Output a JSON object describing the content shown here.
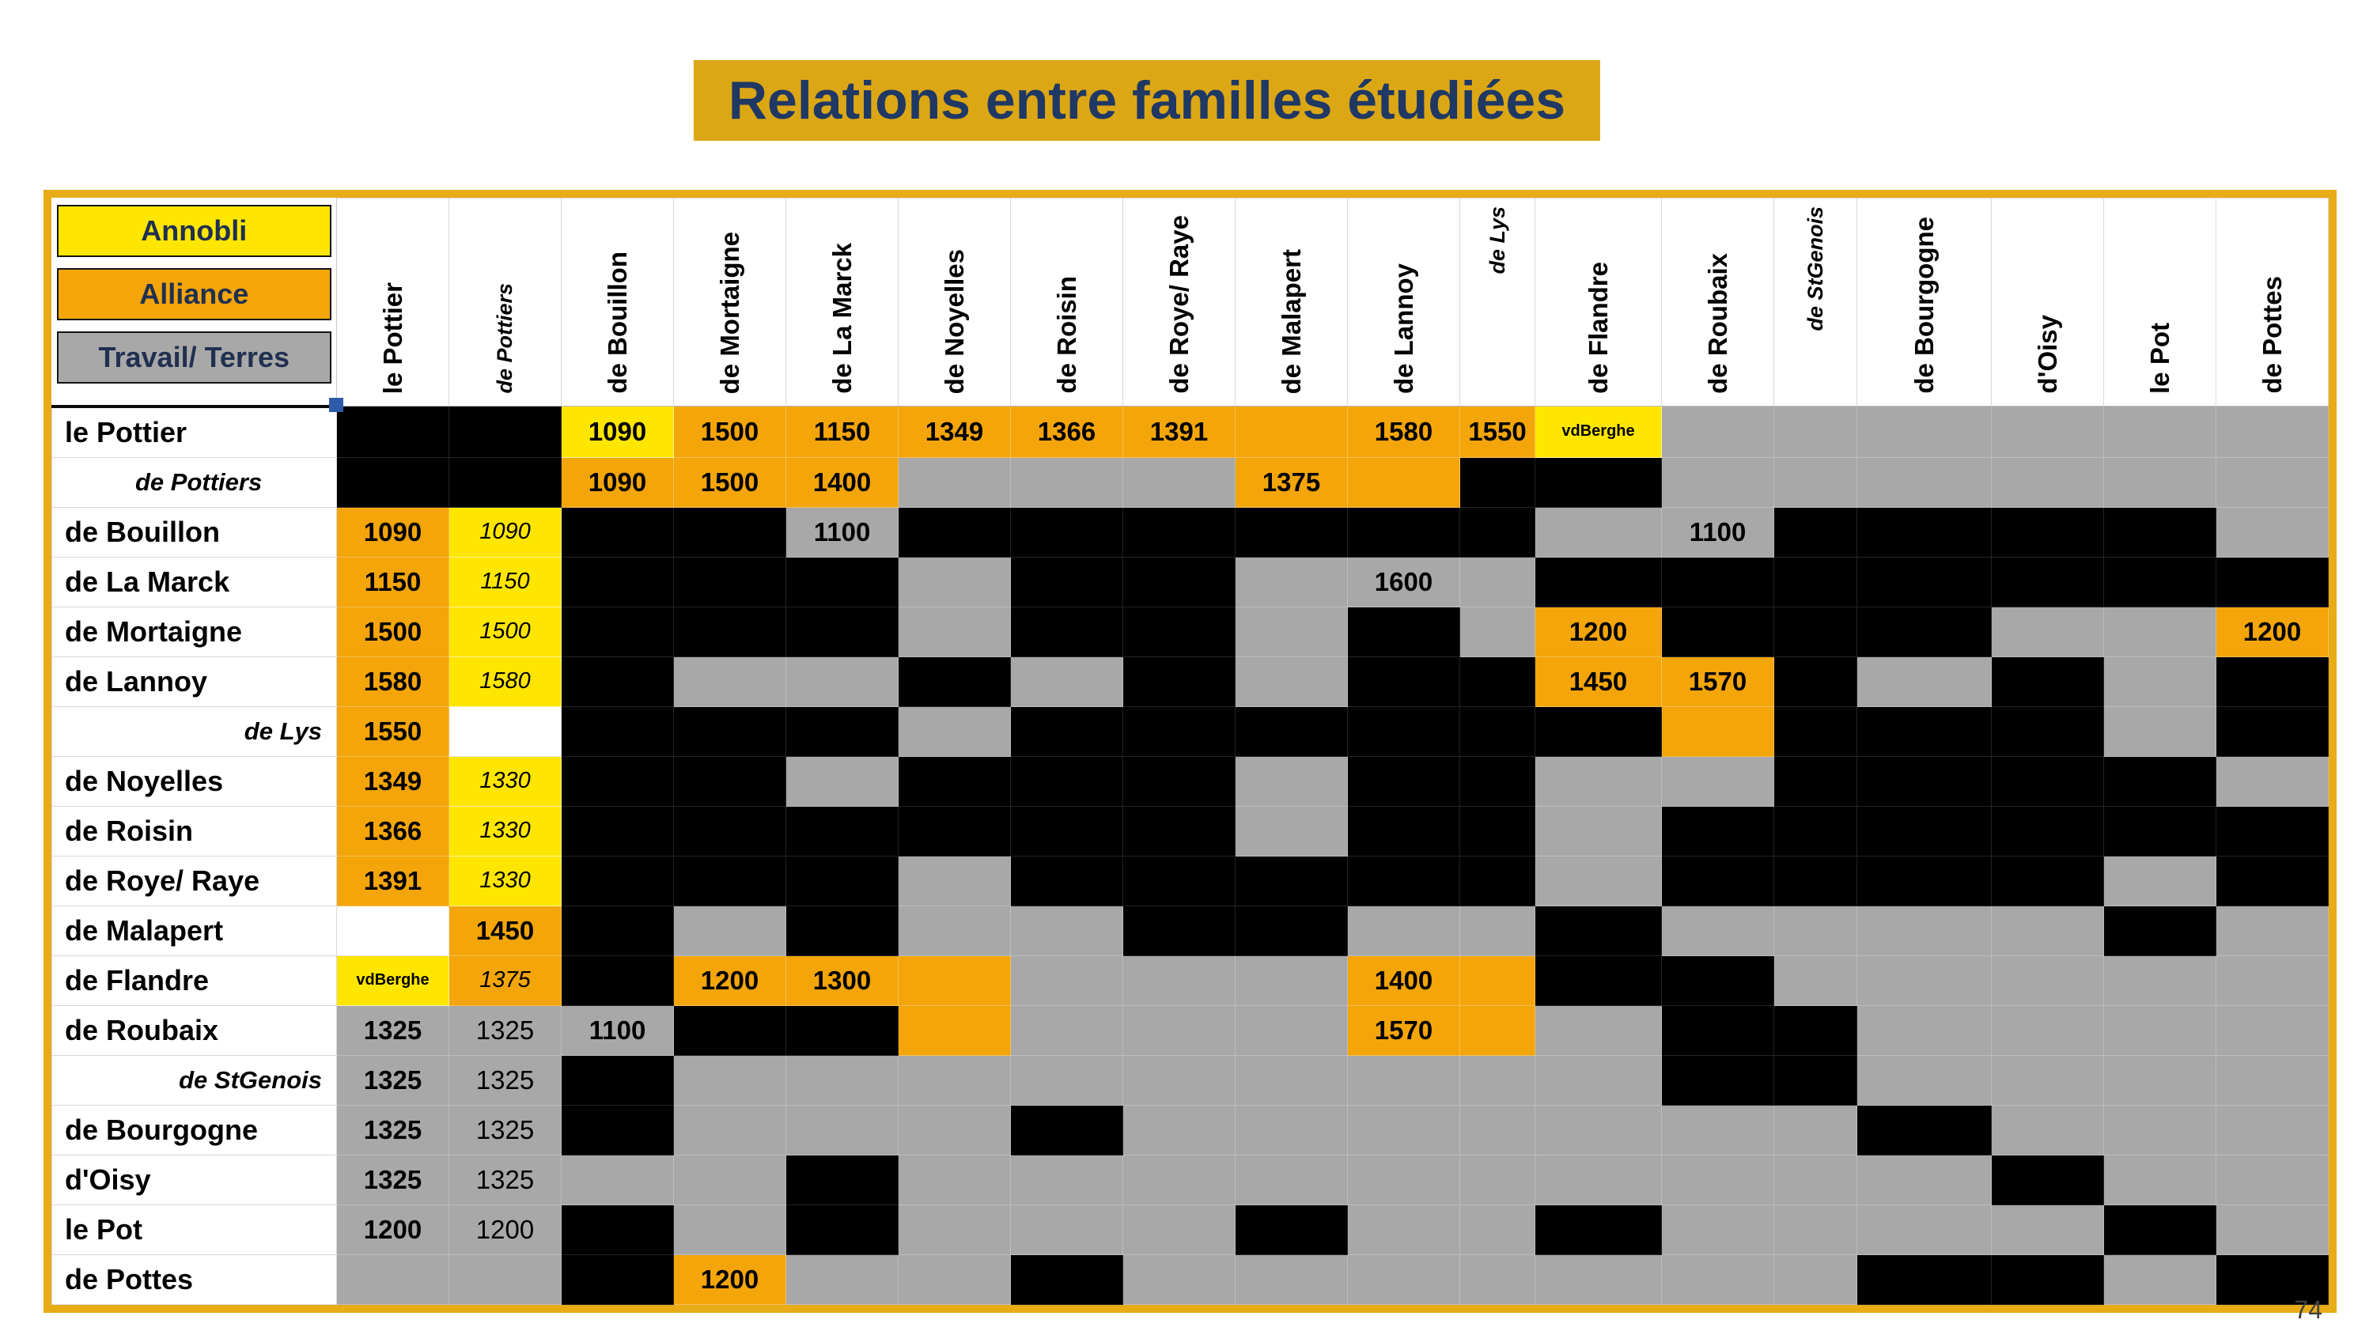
{
  "title": "Relations entre familles étudiées",
  "page_number": "74",
  "legend": [
    {
      "key": "annobli",
      "label": "Annobli",
      "color": "#FFE600"
    },
    {
      "key": "alliance",
      "label": "Alliance",
      "color": "#F3A50A"
    },
    {
      "key": "travail-terres",
      "label": "Travail/ Terres",
      "color": "#A8A8A8"
    }
  ],
  "chart_data": {
    "type": "heatmap",
    "title": "Relations entre familles étudiées",
    "legend": {
      "yellow": "Annobli",
      "orange": "Alliance",
      "gray": "Travail/ Terres"
    },
    "cell_codes": {
      "b": "black = no relation shown",
      "g": "gray = Travail/ Terres",
      "o": "orange = Alliance (year when given)",
      "y": "yellow = Annobli (year when given)",
      "w": "white = empty"
    },
    "columns": [
      {
        "label": "le Pottier"
      },
      {
        "label": "de Pottiers",
        "style": "italic"
      },
      {
        "label": "de Bouillon"
      },
      {
        "label": "de Mortaigne"
      },
      {
        "label": "de La Marck"
      },
      {
        "label": "de Noyelles"
      },
      {
        "label": "de Roisin"
      },
      {
        "label": "de Roye/ Raye"
      },
      {
        "label": "de Malapert"
      },
      {
        "label": "de Lannoy"
      },
      {
        "label": "de Lys",
        "style": "italic raised"
      },
      {
        "label": "de Flandre"
      },
      {
        "label": "de Roubaix"
      },
      {
        "label": "de StGenois",
        "style": "italic raised"
      },
      {
        "label": "de Bourgogne"
      },
      {
        "label": "d'Oisy"
      },
      {
        "label": "le Pot"
      },
      {
        "label": "de Pottes"
      }
    ],
    "rows": [
      {
        "label": "le Pottier",
        "cells": [
          "b",
          "b",
          "y:1090",
          "o:1500",
          "o:1150",
          "o:1349",
          "o:1366",
          "o:1391",
          "o",
          "o:1580",
          "o:1550",
          "y:vdBerghe:s",
          "g",
          "g",
          "g",
          "g",
          "g",
          "g"
        ]
      },
      {
        "label": "de Pottiers",
        "style": "italic indent",
        "cells": [
          "b",
          "b",
          "o:1090",
          "o:1500",
          "o:1400",
          "g",
          "g",
          "g",
          "o:1375",
          "o",
          "b",
          "b",
          "g",
          "g",
          "g",
          "g",
          "g",
          "g"
        ]
      },
      {
        "label": "de Bouillon",
        "cells": [
          "o:1090",
          "y:1090:i",
          "b",
          "b",
          "g:1100",
          "b",
          "b",
          "b",
          "b",
          "b",
          "b",
          "g",
          "g:1100",
          "b",
          "b",
          "b",
          "b",
          "g"
        ]
      },
      {
        "label": "de La Marck",
        "cells": [
          "o:1150",
          "y:1150:i",
          "b",
          "b",
          "b",
          "g",
          "b",
          "b",
          "g",
          "g:1600",
          "g",
          "b",
          "b",
          "b",
          "b",
          "b",
          "b",
          "b"
        ]
      },
      {
        "label": "de Mortaigne",
        "cells": [
          "o:1500",
          "y:1500:i",
          "b",
          "b",
          "b",
          "g",
          "b",
          "b",
          "g",
          "b",
          "g",
          "o:1200",
          "b",
          "b",
          "b",
          "g",
          "g",
          "o:1200"
        ]
      },
      {
        "label": "de Lannoy",
        "cells": [
          "o:1580",
          "y:1580:i",
          "b",
          "g",
          "g",
          "b",
          "g",
          "b",
          "g",
          "b",
          "b",
          "o:1450",
          "o:1570",
          "b",
          "g",
          "b",
          "g",
          "b"
        ]
      },
      {
        "label": "de Lys",
        "style": "italic right",
        "cells": [
          "o:1550",
          "w",
          "b",
          "b",
          "b",
          "g",
          "b",
          "b",
          "b",
          "b",
          "b",
          "b",
          "o",
          "b",
          "b",
          "b",
          "g",
          "b"
        ]
      },
      {
        "label": "de Noyelles",
        "cells": [
          "o:1349",
          "y:1330:i",
          "b",
          "b",
          "g",
          "b",
          "b",
          "b",
          "g",
          "b",
          "b",
          "g",
          "g",
          "b",
          "b",
          "b",
          "b",
          "g"
        ]
      },
      {
        "label": "de Roisin",
        "cells": [
          "o:1366",
          "y:1330:i",
          "b",
          "b",
          "b",
          "b",
          "b",
          "b",
          "g",
          "b",
          "b",
          "g",
          "b",
          "b",
          "b",
          "b",
          "b",
          "b"
        ]
      },
      {
        "label": "de Roye/ Raye",
        "cells": [
          "o:1391",
          "y:1330:i",
          "b",
          "b",
          "b",
          "g",
          "b",
          "b",
          "b",
          "b",
          "b",
          "g",
          "b",
          "b",
          "b",
          "b",
          "g",
          "b"
        ]
      },
      {
        "label": "de Malapert",
        "cells": [
          "w",
          "o:1450",
          "b",
          "g",
          "b",
          "g",
          "g",
          "b",
          "b",
          "g",
          "g",
          "b",
          "g",
          "g",
          "g",
          "g",
          "b",
          "g"
        ]
      },
      {
        "label": "de Flandre",
        "cells": [
          "y:vdBerghe:s",
          "o:1375:i",
          "b",
          "o:1200",
          "o:1300",
          "o",
          "g",
          "g",
          "g",
          "o:1400",
          "o",
          "b",
          "b",
          "g",
          "g",
          "g",
          "g",
          "g"
        ]
      },
      {
        "label": "de Roubaix",
        "cells": [
          "g:1325",
          "g:1325:r",
          "g:1100",
          "b",
          "b",
          "o",
          "g",
          "g",
          "g",
          "o:1570",
          "o",
          "g",
          "b",
          "b",
          "g",
          "g",
          "g",
          "g"
        ]
      },
      {
        "label": "de StGenois",
        "style": "italic right",
        "cells": [
          "g:1325",
          "g:1325:r",
          "b",
          "g",
          "g",
          "g",
          "g",
          "g",
          "g",
          "g",
          "g",
          "g",
          "b",
          "b",
          "g",
          "g",
          "g",
          "g"
        ]
      },
      {
        "label": "de Bourgogne",
        "cells": [
          "g:1325",
          "g:1325:r",
          "b",
          "g",
          "g",
          "g",
          "b",
          "g",
          "g",
          "g",
          "g",
          "g",
          "g",
          "g",
          "b",
          "g",
          "g",
          "g"
        ]
      },
      {
        "label": "d'Oisy",
        "cells": [
          "g:1325",
          "g:1325:r",
          "g",
          "g",
          "b",
          "g",
          "g",
          "g",
          "g",
          "g",
          "g",
          "g",
          "g",
          "g",
          "g",
          "b",
          "g",
          "g"
        ]
      },
      {
        "label": "le Pot",
        "cells": [
          "g:1200",
          "g:1200:r",
          "b",
          "g",
          "b",
          "g",
          "g",
          "g",
          "b",
          "g",
          "g",
          "b",
          "g",
          "g",
          "g",
          "g",
          "b",
          "g"
        ]
      },
      {
        "label": "de Pottes",
        "cells": [
          "g",
          "g",
          "b",
          "o:1200",
          "g",
          "g",
          "b",
          "g",
          "g",
          "g",
          "g",
          "g",
          "g",
          "g",
          "b",
          "b",
          "g",
          "b"
        ]
      }
    ]
  }
}
